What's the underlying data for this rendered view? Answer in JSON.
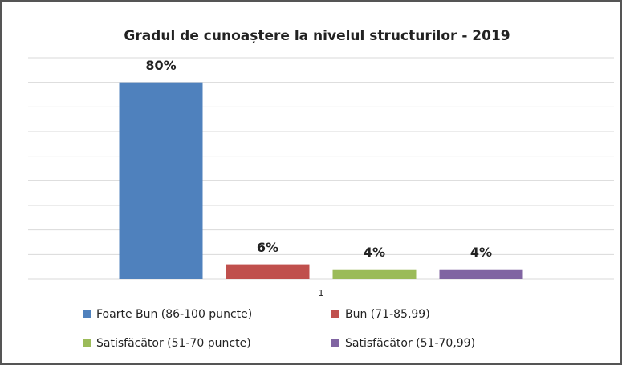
{
  "chart_data": {
    "type": "bar",
    "title": "Gradul de cunoaștere la nivelul structurilor - 2019",
    "categories": [
      "1"
    ],
    "series": [
      {
        "name": "Foarte Bun (86-100 puncte)",
        "color": "#4f81bd",
        "values": [
          80
        ],
        "value_labels": [
          "80%"
        ]
      },
      {
        "name": "Bun (71-85,99)",
        "color": "#c0504d",
        "values": [
          6
        ],
        "value_labels": [
          "6%"
        ]
      },
      {
        "name": "Satisfăcător (51-70 puncte)",
        "color": "#9bbb59",
        "values": [
          4
        ],
        "value_labels": [
          "4%"
        ]
      },
      {
        "name": "Satisfăcător (51-70,99)",
        "color": "#8064a2",
        "values": [
          4
        ],
        "value_labels": [
          "4%"
        ]
      }
    ],
    "ylim": [
      0,
      90
    ],
    "yticks": [
      0,
      10,
      20,
      30,
      40,
      50,
      60,
      70,
      80,
      90
    ],
    "grid": true,
    "legend": "bottom"
  }
}
